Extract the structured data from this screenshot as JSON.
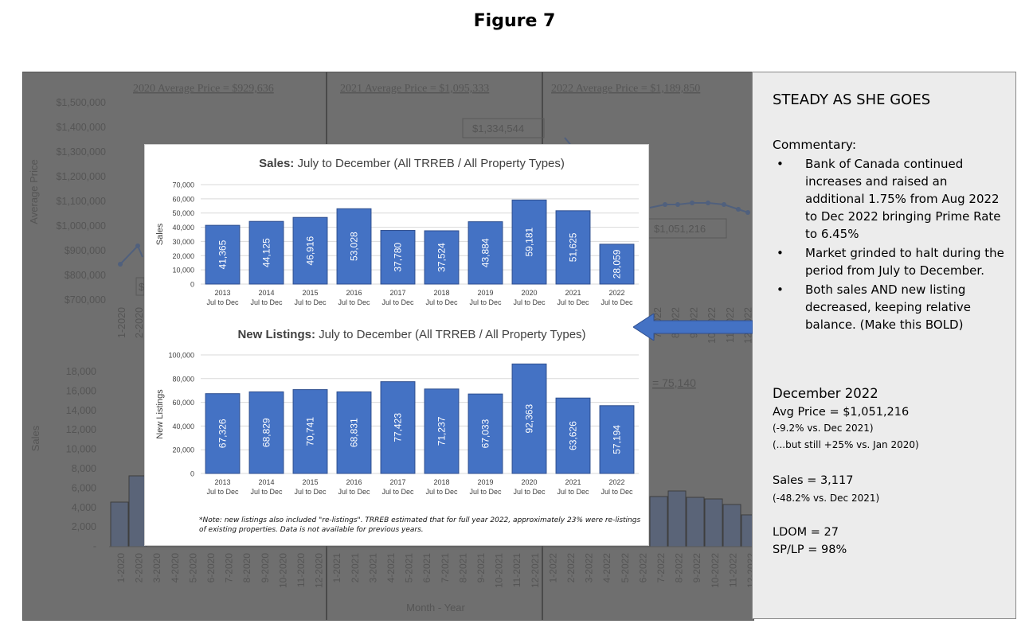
{
  "figure_title": "Figure 7",
  "background_chart": {
    "price_labels": [
      "2020 Average Price = $929,636",
      "2021 Average Price = $1,095,333",
      "2022 Average Price = $1,189,850"
    ],
    "price_axis_title": "Average Price",
    "price_ticks": [
      "$1,500,000",
      "$1,400,000",
      "$1,300,000",
      "$1,200,000",
      "$1,100,000",
      "$1,000,000",
      "$900,000",
      "$800,000",
      "$700,000"
    ],
    "callout_peak": "$1,334,544",
    "callout_last": "$1,051,216",
    "callout_partial": "$",
    "sales_avg_partial": "= 75,140",
    "sales_axis_title": "Sales",
    "sales_ticks": [
      "18,000",
      "16,000",
      "14,000",
      "12,000",
      "10,000",
      "8,000",
      "6,000",
      "4,000",
      "2,000",
      "-"
    ],
    "x_axis_title": "Month - Year",
    "top_month_left": [
      "1-2020",
      "2-2020"
    ],
    "top_month_right": [
      "7-2022",
      "8-2022",
      "9-2022",
      "10-2022",
      "11-2022",
      "12-2022"
    ],
    "months": [
      "1-2020",
      "2-2020",
      "3-2020",
      "4-2020",
      "5-2020",
      "6-2020",
      "7-2020",
      "8-2020",
      "9-2020",
      "10-2020",
      "11-2020",
      "12-2020",
      "1-2021",
      "2-2021",
      "3-2021",
      "4-2021",
      "5-2021",
      "6-2021",
      "7-2021",
      "8-2021",
      "9-2021",
      "10-2021",
      "11-2021",
      "12-2021",
      "1-2022",
      "2-2022",
      "3-2022",
      "4-2022",
      "5-2022",
      "6-2022",
      "7-2022",
      "8-2022",
      "9-2022",
      "10-2022",
      "11-2022",
      "12-2022"
    ]
  },
  "commentary": {
    "title": "STEADY AS SHE GOES",
    "heading": "Commentary:",
    "bullets": [
      "Bank of Canada continued increases and raised an additional 1.75% from Aug 2022 to Dec 2022 bringing Prime Rate to 6.45%",
      "Market grinded to halt during the period from July to December.",
      "Both sales AND new listing decreased, keeping relative balance. (Make this BOLD)"
    ],
    "dec_heading": "December 2022",
    "avg_price": "Avg Price = $1,051,216",
    "avg_note1": "(-9.2% vs. Dec 2021)",
    "avg_note2": "(...but still +25% vs. Jan 2020)",
    "sales": "Sales = 3,117",
    "sales_note": "(-48.2% vs. Dec 2021)",
    "ldom": "LDOM = 27",
    "splp": "SP/LP = 98%"
  },
  "overlay_note": "*Note: new listings also included \"re-listings\".  TRREB estimated that for full year 2022, approximately 23% were re-listings of existing properties. Data is not available for previous years.",
  "colors": {
    "bar": "#4472c4",
    "bar_border": "#2f4f8f",
    "bg": "#6f6f6f",
    "panel": "#ececec",
    "arrow": "#4472c4"
  },
  "chart_data": [
    {
      "type": "bar",
      "title_bold": "Sales:",
      "title_rest": " July to December (All TRREB / All Property Types)",
      "ylabel": "Sales",
      "categories": [
        "2013",
        "2014",
        "2015",
        "2016",
        "2017",
        "2018",
        "2019",
        "2020",
        "2021",
        "2022"
      ],
      "category_sub": "Jul to Dec",
      "values": [
        41365,
        44125,
        46916,
        53028,
        37780,
        37524,
        43884,
        59181,
        51625,
        28059
      ],
      "value_labels": [
        "41,365",
        "44,125",
        "46,916",
        "53,028",
        "37,780",
        "37,524",
        "43,884",
        "59,181",
        "51,625",
        "28,059"
      ],
      "ylim": [
        0,
        70000
      ],
      "y_ticks": [
        "70,000",
        "60,000",
        "50,000",
        "40,000",
        "30,000",
        "20,000",
        "10,000",
        "0"
      ],
      "grid": true
    },
    {
      "type": "bar",
      "title_bold": "New Listings:",
      "title_rest": " July to December (All TRREB / All Property Types)",
      "ylabel": "New Listings",
      "categories": [
        "2013",
        "2014",
        "2015",
        "2016",
        "2017",
        "2018",
        "2019",
        "2020",
        "2021",
        "2022"
      ],
      "category_sub": "Jul to Dec",
      "values": [
        67326,
        68829,
        70741,
        68831,
        77423,
        71237,
        67033,
        92363,
        63626,
        57194
      ],
      "value_labels": [
        "67,326",
        "68,829",
        "70,741",
        "68,831",
        "77,423",
        "71,237",
        "67,033",
        "92,363",
        "63,626",
        "57,194"
      ],
      "ylim": [
        0,
        100000
      ],
      "y_ticks": [
        "100,000",
        "80,000",
        "60,000",
        "40,000",
        "20,000",
        "0"
      ],
      "grid": true
    }
  ]
}
